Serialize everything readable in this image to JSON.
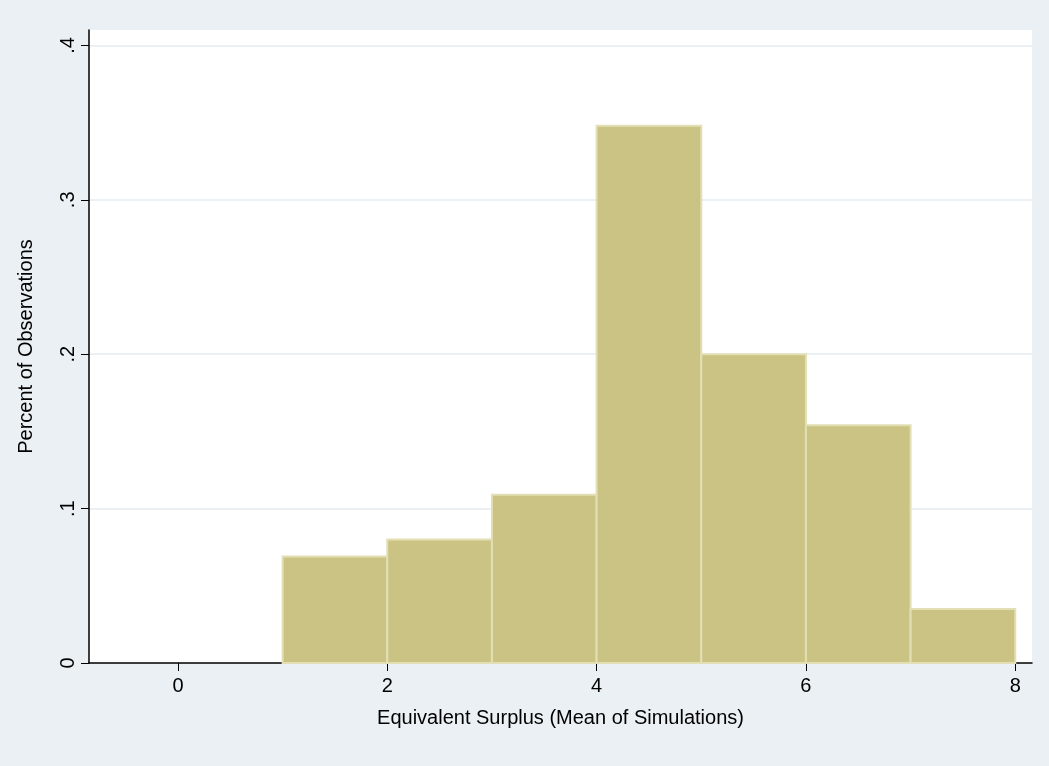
{
  "chart_data": {
    "type": "histogram",
    "xlabel": "Equivalent Surplus (Mean of Simulations)",
    "ylabel": "Percent of Observations",
    "bins": [
      1,
      2,
      3,
      4,
      5,
      6,
      7,
      8
    ],
    "values": [
      0.069,
      0.08,
      0.109,
      0.348,
      0.2,
      0.154,
      0.035
    ],
    "color": "#cbc383",
    "xlim": [
      -0.85,
      8.16
    ],
    "xticks": [
      0,
      2,
      4,
      6,
      8
    ],
    "ylim": [
      0,
      0.41
    ],
    "yticks": [
      0,
      {
        "value": 0.1,
        "label": ".1"
      },
      {
        "value": 0.2,
        "label": ".2"
      },
      {
        "value": 0.3,
        "label": ".3"
      },
      {
        "value": 0.4,
        "label": ".4"
      }
    ],
    "grid": "y"
  }
}
